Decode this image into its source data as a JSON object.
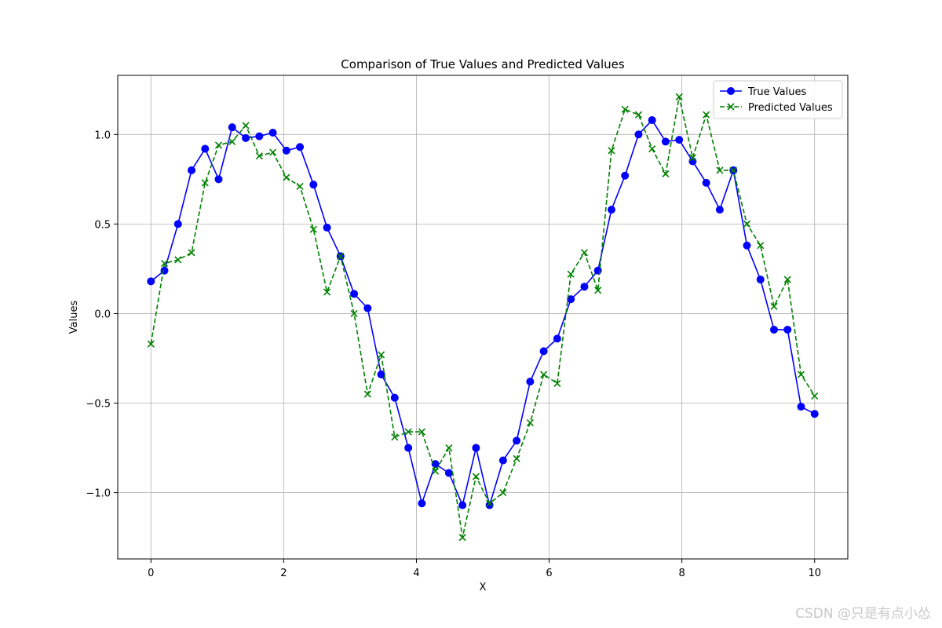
{
  "chart_data": {
    "type": "line",
    "title": "Comparison of True Values and Predicted Values",
    "xlabel": "X",
    "ylabel": "Values",
    "xlim": [
      -0.5,
      10.5
    ],
    "ylim": [
      -1.37,
      1.33
    ],
    "xticks": [
      0,
      2,
      4,
      6,
      8,
      10
    ],
    "xtick_labels": [
      "0",
      "2",
      "4",
      "6",
      "8",
      "10"
    ],
    "yticks": [
      -1.0,
      -0.5,
      0.0,
      0.5,
      1.0
    ],
    "ytick_labels": [
      "−1.0",
      "−0.5",
      "0.0",
      "0.5",
      "1.0"
    ],
    "grid": true,
    "legend_position": "top-right",
    "x": [
      0.0,
      0.204,
      0.408,
      0.612,
      0.816,
      1.02,
      1.224,
      1.429,
      1.633,
      1.837,
      2.041,
      2.245,
      2.449,
      2.653,
      2.857,
      3.061,
      3.265,
      3.469,
      3.673,
      3.878,
      4.082,
      4.286,
      4.49,
      4.694,
      4.898,
      5.102,
      5.306,
      5.51,
      5.714,
      5.918,
      6.122,
      6.327,
      6.531,
      6.735,
      6.939,
      7.143,
      7.347,
      7.551,
      7.755,
      7.959,
      8.163,
      8.367,
      8.571,
      8.776,
      8.98,
      9.184,
      9.388,
      9.592,
      9.796,
      10.0
    ],
    "series": [
      {
        "name": "True Values",
        "color": "#0000ff",
        "linestyle": "solid",
        "marker": "circle",
        "values": [
          0.18,
          0.24,
          0.5,
          0.8,
          0.92,
          0.75,
          1.04,
          0.98,
          0.99,
          1.01,
          0.91,
          0.93,
          0.72,
          0.48,
          0.32,
          0.11,
          0.03,
          -0.34,
          -0.47,
          -0.75,
          -1.06,
          -0.84,
          -0.89,
          -1.07,
          -0.75,
          -1.07,
          -0.82,
          -0.71,
          -0.38,
          -0.21,
          -0.14,
          0.08,
          0.15,
          0.24,
          0.58,
          0.77,
          1.0,
          1.08,
          0.96,
          0.97,
          0.85,
          0.73,
          0.58,
          0.8,
          0.38,
          0.19,
          -0.09,
          -0.09,
          -0.52,
          -0.56
        ]
      },
      {
        "name": "Predicted Values",
        "color": "#008000",
        "linestyle": "dashed",
        "marker": "x",
        "values": [
          -0.17,
          0.28,
          0.3,
          0.34,
          0.73,
          0.94,
          0.96,
          1.05,
          0.88,
          0.9,
          0.76,
          0.71,
          0.47,
          0.12,
          0.32,
          0.0,
          -0.45,
          -0.23,
          -0.69,
          -0.66,
          -0.66,
          -0.88,
          -0.75,
          -1.25,
          -0.91,
          -1.06,
          -1.0,
          -0.81,
          -0.61,
          -0.34,
          -0.39,
          0.22,
          0.34,
          0.13,
          0.91,
          1.14,
          1.11,
          0.92,
          0.78,
          1.21,
          0.87,
          1.11,
          0.8,
          0.8,
          0.5,
          0.38,
          0.04,
          0.19,
          -0.34,
          -0.46
        ]
      }
    ]
  },
  "watermark": "CSDN @只是有点小怂"
}
